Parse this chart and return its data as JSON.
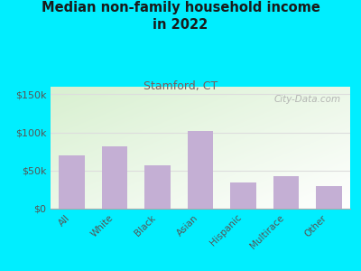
{
  "title": "Median non-family household income\nin 2022",
  "subtitle": "Stamford, CT",
  "categories": [
    "All",
    "White",
    "Black",
    "Asian",
    "Hispanic",
    "Multirace",
    "Other"
  ],
  "values": [
    70000,
    82000,
    57000,
    102000,
    34000,
    43000,
    30000
  ],
  "bar_color": "#c4afd4",
  "background_outer": "#00eeff",
  "title_color": "#1a1a1a",
  "subtitle_color": "#7a5c5c",
  "ylabel_ticks": [
    0,
    50000,
    100000,
    150000
  ],
  "ylabel_labels": [
    "$0",
    "$50k",
    "$100k",
    "$150k"
  ],
  "ylim": [
    0,
    160000
  ],
  "watermark": "City-Data.com",
  "grid_color": "#dddddd",
  "tick_color": "#555555"
}
